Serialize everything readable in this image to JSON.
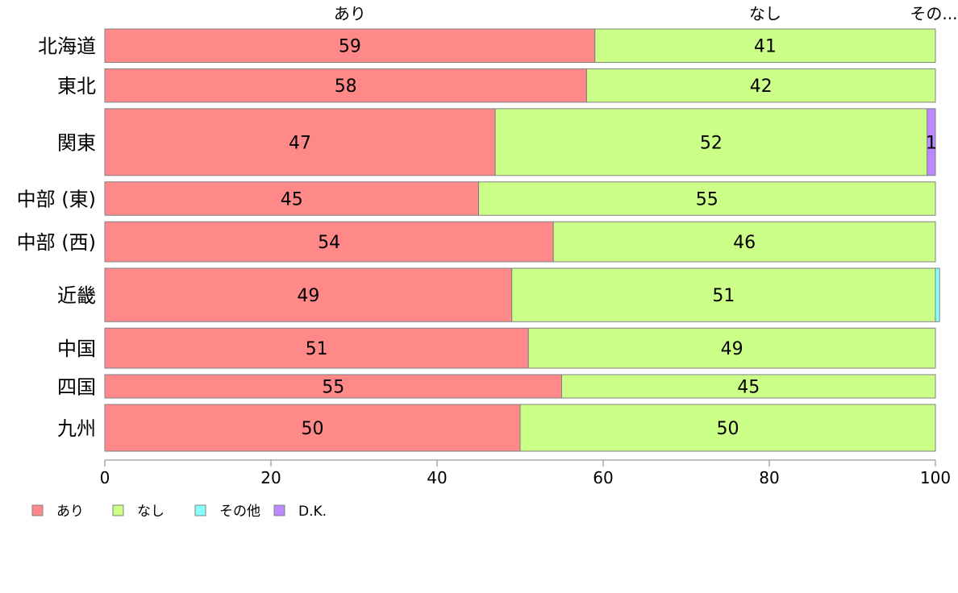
{
  "chart_data": {
    "type": "bar",
    "orientation": "horizontal",
    "stacked": true,
    "categories": [
      "北海道",
      "東北",
      "関東",
      "中部 (東)",
      "中部 (西)",
      "近畿",
      "中国",
      "四国",
      "九州"
    ],
    "series": [
      {
        "name": "あり",
        "values": [
          59,
          58,
          47,
          45,
          54,
          49,
          51,
          55,
          50
        ],
        "labels": [
          "59",
          "58",
          "47",
          "45",
          "54",
          "49",
          "51",
          "55",
          "50"
        ]
      },
      {
        "name": "なし",
        "values": [
          41,
          42,
          52,
          55,
          46,
          51,
          49,
          45,
          50
        ],
        "labels": [
          "41",
          "42",
          "52",
          "55",
          "46",
          "51",
          "49",
          "45",
          "50"
        ]
      },
      {
        "name": "その他",
        "values": [
          0,
          0,
          0,
          0,
          0,
          0.5,
          0,
          0,
          0
        ],
        "labels": [
          "",
          "",
          "",
          "",
          "",
          "",
          "",
          "",
          ""
        ]
      },
      {
        "name": "D.K.",
        "values": [
          0,
          0,
          1,
          0,
          0,
          0,
          0,
          0,
          0
        ],
        "labels": [
          "",
          "",
          "1",
          "",
          "",
          "",
          "",
          "",
          ""
        ]
      }
    ],
    "colors": [
      "#ff8888",
      "#ccff88",
      "#88ffff",
      "#bb88ff"
    ],
    "column_headers": [
      "あり",
      "なし",
      "その..."
    ],
    "xlim": [
      0,
      100
    ],
    "xticks": [
      "0",
      "20",
      "40",
      "60",
      "80",
      "100"
    ],
    "row_weights": [
      1,
      1,
      2,
      1,
      1.2,
      1.6,
      1.2,
      0.7,
      1.4
    ],
    "grid": false,
    "legend_position": "bottom-left"
  }
}
